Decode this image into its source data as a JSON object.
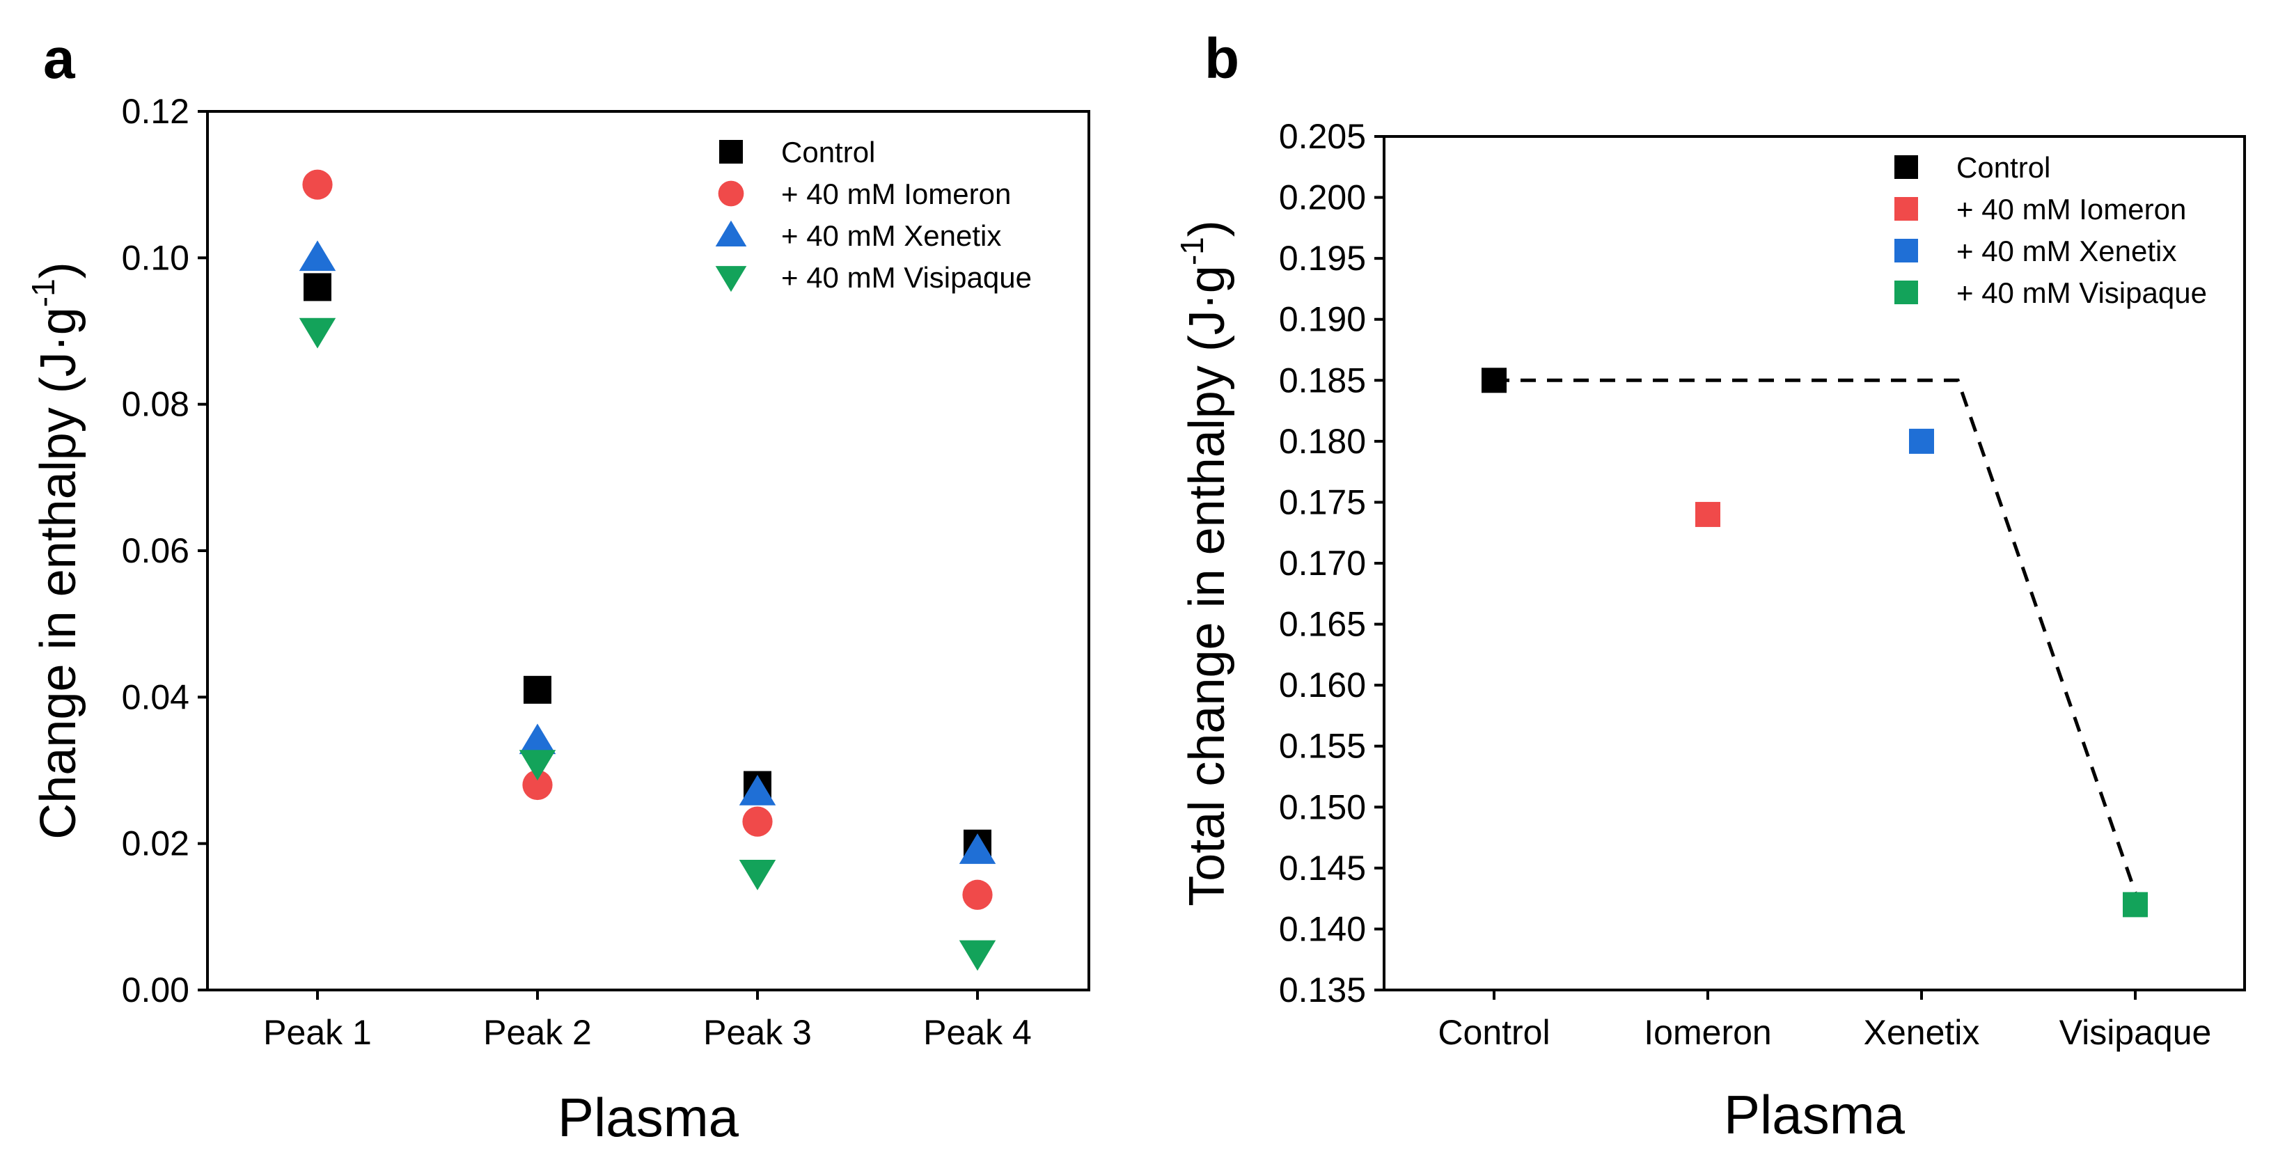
{
  "chart_data": [
    {
      "panel_label": "a",
      "type": "scatter",
      "categories": [
        "Peak 1",
        "Peak 2",
        "Peak 3",
        "Peak 4"
      ],
      "xlabel": "Plasma",
      "ylabel": "Change in enthalpy (J·g",
      "ylabel_sup": "-1",
      "ylabel_end": ")",
      "ylim": [
        0.0,
        0.12
      ],
      "yticks": [
        "0.00",
        "0.02",
        "0.04",
        "0.06",
        "0.08",
        "0.10",
        "0.12"
      ],
      "grid": false,
      "legend_position": "top-right",
      "series": [
        {
          "name": "Control",
          "marker": "square",
          "color": "#000000",
          "values": [
            0.096,
            0.041,
            0.028,
            0.02
          ]
        },
        {
          "name": "+ 40 mM Iomeron",
          "marker": "circle",
          "color": "#f04a4a",
          "values": [
            0.11,
            0.028,
            0.023,
            0.013
          ]
        },
        {
          "name": "+ 40 mM Xenetix",
          "marker": "triangle-up",
          "color": "#1f6fd6",
          "values": [
            0.1,
            0.034,
            0.027,
            0.019
          ]
        },
        {
          "name": "+ 40 mM Visipaque",
          "marker": "triangle-down",
          "color": "#13a35a",
          "values": [
            0.09,
            0.031,
            0.016,
            0.005
          ]
        }
      ]
    },
    {
      "panel_label": "b",
      "type": "scatter",
      "categories": [
        "Control",
        "Iomeron",
        "Xenetix",
        "Visipaque"
      ],
      "xlabel": "Plasma",
      "ylabel": "Total change in enthalpy (J·g",
      "ylabel_sup": "-1",
      "ylabel_end": ")",
      "ylim": [
        0.135,
        0.205
      ],
      "yticks": [
        "0.135",
        "0.140",
        "0.145",
        "0.150",
        "0.155",
        "0.160",
        "0.165",
        "0.170",
        "0.175",
        "0.180",
        "0.185",
        "0.190",
        "0.195",
        "0.200",
        "0.205"
      ],
      "grid": false,
      "legend_position": "top-right",
      "series": [
        {
          "name": "Control",
          "marker": "square",
          "color": "#000000",
          "values": [
            0.185,
            null,
            null,
            null
          ]
        },
        {
          "name": "+ 40 mM Iomeron",
          "marker": "square",
          "color": "#f04a4a",
          "values": [
            null,
            0.174,
            null,
            null
          ]
        },
        {
          "name": "+ 40 mM Xenetix",
          "marker": "square",
          "color": "#1f6fd6",
          "values": [
            null,
            null,
            0.18,
            null
          ]
        },
        {
          "name": "+ 40 mM Visipaque",
          "marker": "square",
          "color": "#13a35a",
          "values": [
            null,
            null,
            null,
            0.142
          ]
        }
      ],
      "reference_line": {
        "style": "dashed",
        "color": "#000000",
        "points": [
          [
            0,
            0.185
          ],
          [
            2.17,
            0.185
          ],
          [
            3,
            0.143
          ]
        ]
      }
    }
  ]
}
